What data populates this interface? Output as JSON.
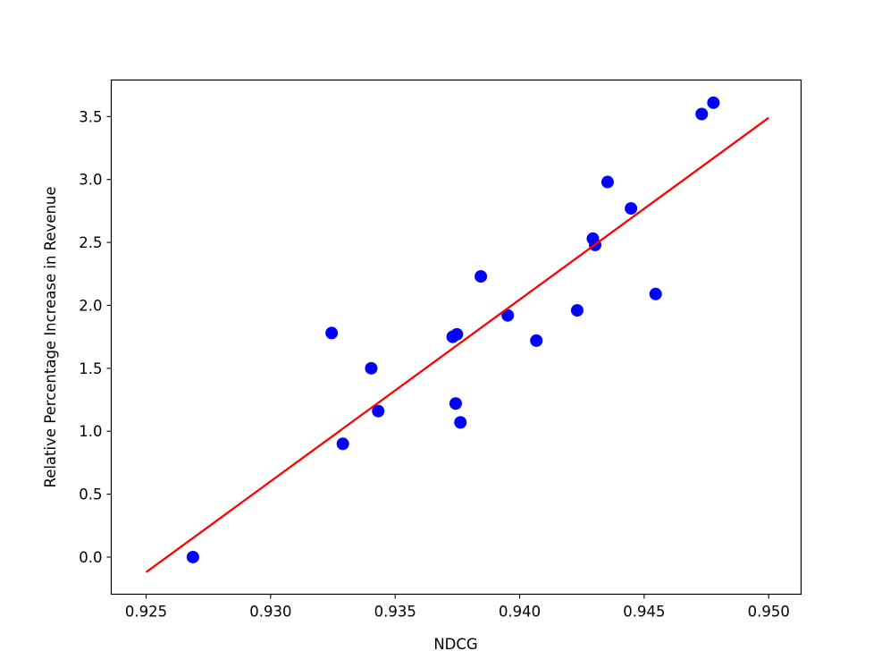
{
  "chart_data": {
    "type": "scatter",
    "title": "",
    "xlabel": "NDCG",
    "ylabel": "Relative Percentage Increase in Revenue",
    "xlim": [
      0.9236,
      0.9513
    ],
    "ylim": [
      -0.295,
      3.79
    ],
    "xticks": [
      "0.925",
      "0.930",
      "0.935",
      "0.940",
      "0.945",
      "0.950"
    ],
    "xtick_values": [
      0.925,
      0.93,
      0.935,
      0.94,
      0.945,
      0.95
    ],
    "yticks": [
      "0.0",
      "0.5",
      "1.0",
      "1.5",
      "2.0",
      "2.5",
      "3.0",
      "3.5"
    ],
    "ytick_values": [
      0.0,
      0.5,
      1.0,
      1.5,
      2.0,
      2.5,
      3.0,
      3.5
    ],
    "grid": false,
    "legend": "none",
    "series": [
      {
        "kind": "scatter",
        "color": "#0000ff",
        "x": [
          0.92688,
          0.93245,
          0.9329,
          0.93404,
          0.93432,
          0.93731,
          0.93743,
          0.93748,
          0.93762,
          0.93844,
          0.93952,
          0.94067,
          0.94231,
          0.94294,
          0.94303,
          0.94353,
          0.94447,
          0.94546,
          0.94731,
          0.94778
        ],
        "y": [
          0.0,
          1.78,
          0.9,
          1.5,
          1.16,
          1.75,
          1.22,
          1.77,
          1.07,
          2.23,
          1.92,
          1.72,
          1.96,
          2.53,
          2.48,
          2.98,
          2.77,
          2.09,
          3.52,
          3.61
        ]
      },
      {
        "kind": "line",
        "color": "#ff0000",
        "x": [
          0.925,
          0.95
        ],
        "y": [
          -0.12,
          3.49
        ]
      }
    ]
  }
}
